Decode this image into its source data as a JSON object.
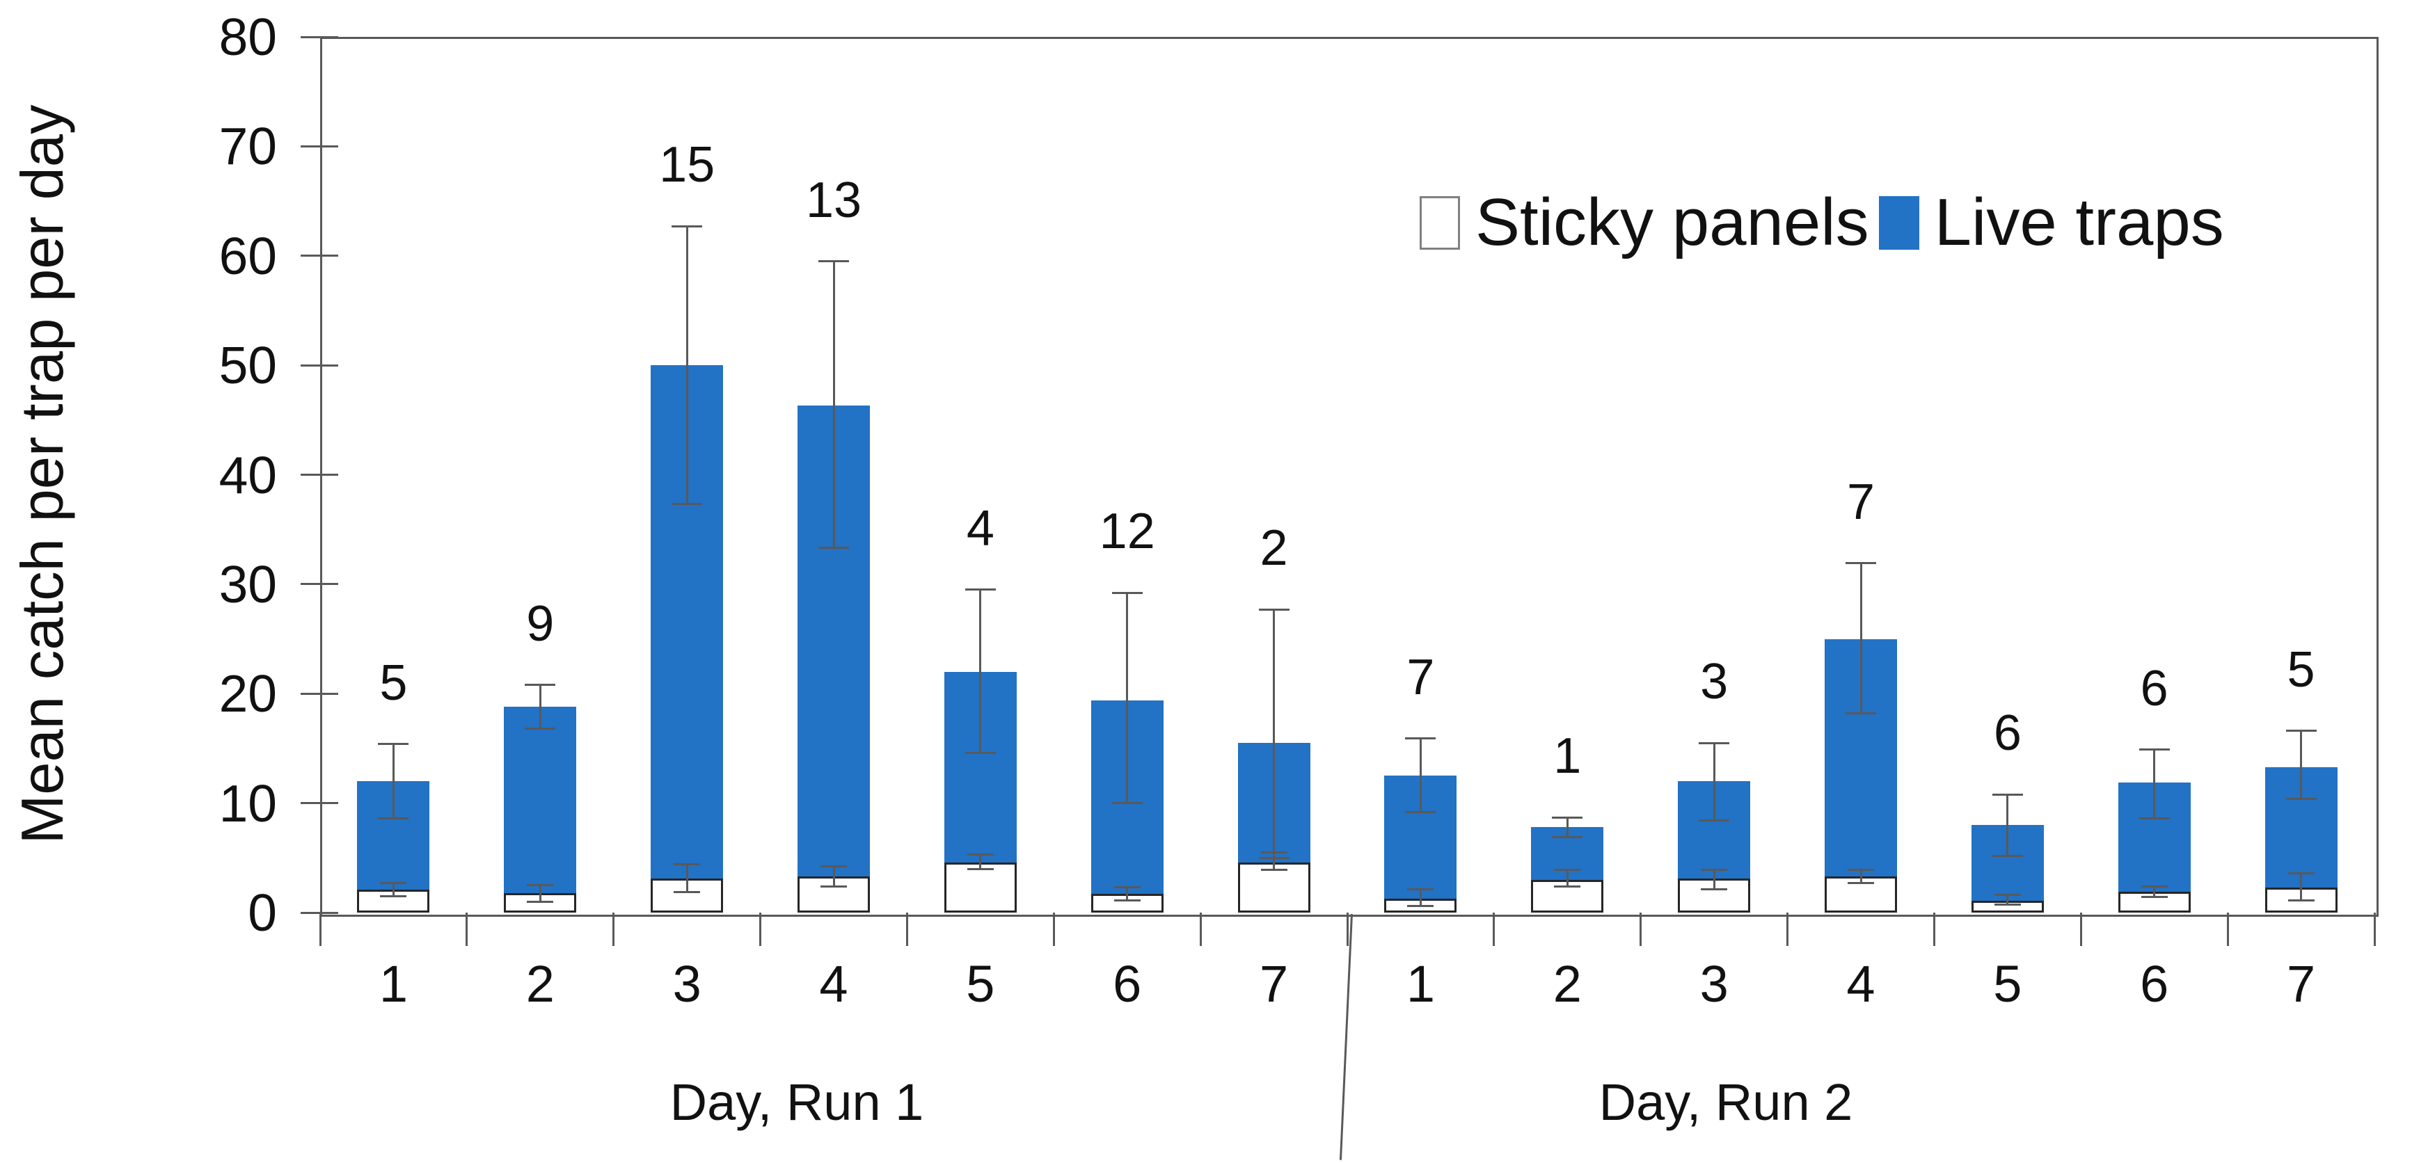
{
  "colors": {
    "live_blue": "#2272C6",
    "sticky_fill": "#FFFFFF",
    "sticky_border": "#262626",
    "error_gray": "#595959",
    "frame_gray": "#595959",
    "text": "#111111"
  },
  "chart_data": {
    "type": "bar",
    "variant": "stacked-with-error-bars",
    "title": "",
    "ylabel": "Mean catch per trap per day",
    "xlabel": "",
    "ylim": [
      0,
      80
    ],
    "yticks": [
      0,
      10,
      20,
      30,
      40,
      50,
      60,
      70,
      80
    ],
    "grid": false,
    "legend": [
      "Sticky panels",
      "Live traps"
    ],
    "legend_position": "top-right",
    "series_note": "sticky = white bottom segment value; total = top of blue stacked bar; err_lo/err_hi = whisker extents of total; sticky_err_lo/sticky_err_hi = whisker extents of sticky segment; count_labels = numbers printed above bars",
    "groups": [
      {
        "label": "Day, Run 1",
        "days": [
          "1",
          "2",
          "3",
          "4",
          "5",
          "6",
          "7"
        ],
        "sticky": [
          2.1,
          1.8,
          3.1,
          3.3,
          4.6,
          1.7,
          4.6
        ],
        "total": [
          12.0,
          18.8,
          50.0,
          46.3,
          22.0,
          19.4,
          15.5
        ],
        "err_lo": [
          8.6,
          16.8,
          37.3,
          33.3,
          14.6,
          10.0,
          5.0
        ],
        "err_hi": [
          15.4,
          20.8,
          62.7,
          59.5,
          29.5,
          29.2,
          27.7
        ],
        "sticky_err_lo": [
          1.5,
          1.0,
          1.9,
          2.4,
          4.0,
          1.1,
          3.9
        ],
        "sticky_err_hi": [
          2.7,
          2.5,
          4.4,
          4.2,
          5.3,
          2.3,
          5.5
        ],
        "count_labels": [
          "5",
          "9",
          "15",
          "13",
          "4",
          "12",
          "2"
        ]
      },
      {
        "label": "Day, Run 2",
        "days": [
          "1",
          "2",
          "3",
          "4",
          "5",
          "6",
          "7"
        ],
        "sticky": [
          1.3,
          3.0,
          3.1,
          3.3,
          1.1,
          1.9,
          2.3
        ],
        "total": [
          12.5,
          7.8,
          12.0,
          25.0,
          8.0,
          11.9,
          13.3
        ],
        "err_lo": [
          9.2,
          6.9,
          8.4,
          18.2,
          5.2,
          8.6,
          10.4
        ],
        "err_hi": [
          15.9,
          8.7,
          15.5,
          31.9,
          10.8,
          14.9,
          16.6
        ],
        "sticky_err_lo": [
          0.6,
          2.4,
          2.1,
          2.7,
          0.7,
          1.4,
          1.1
        ],
        "sticky_err_hi": [
          2.1,
          3.9,
          3.9,
          3.9,
          1.6,
          2.4,
          3.6
        ],
        "count_labels": [
          "7",
          "1",
          "3",
          "7",
          "6",
          "6",
          "5"
        ]
      }
    ]
  }
}
